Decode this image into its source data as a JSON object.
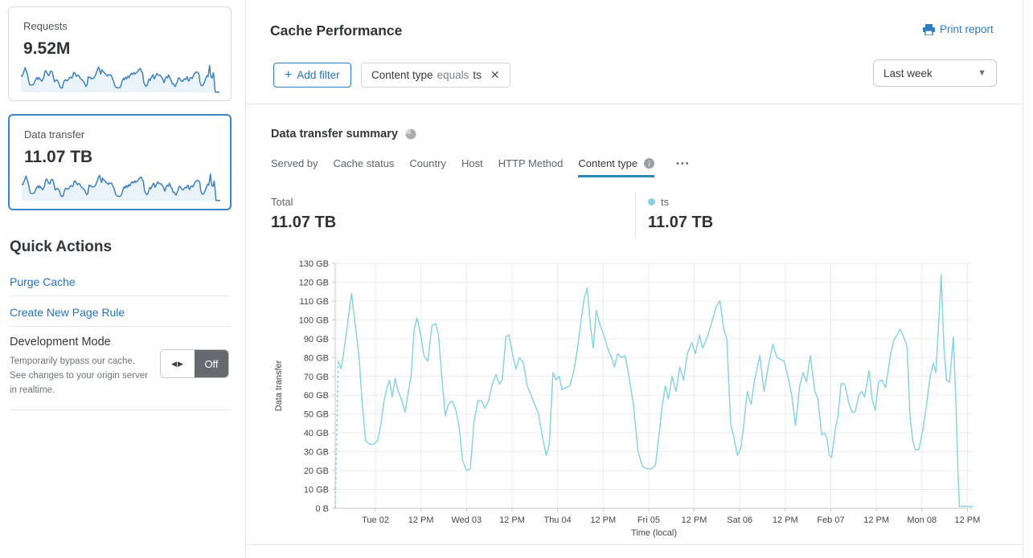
{
  "sidebar": {
    "cards": [
      {
        "label": "Requests",
        "value": "9.52M"
      },
      {
        "label": "Data transfer",
        "value": "11.07 TB"
      }
    ],
    "quick_actions_title": "Quick Actions",
    "links": {
      "purge": "Purge Cache",
      "page_rule": "Create New Page Rule"
    },
    "dev_mode": {
      "title": "Development Mode",
      "description": "Temporarily bypass our cache. See changes to your origin server in realtime.",
      "toggle_state": "Off"
    }
  },
  "header": {
    "title": "Cache Performance",
    "print_report": "Print report",
    "add_filter": "Add filter",
    "filter_chip": {
      "field": "Content type",
      "operator": "equals",
      "value": "ts"
    },
    "time_range": "Last week"
  },
  "summary": {
    "title": "Data transfer summary",
    "tabs": [
      {
        "label": "Served by"
      },
      {
        "label": "Cache status"
      },
      {
        "label": "Country"
      },
      {
        "label": "Host"
      },
      {
        "label": "HTTP Method"
      },
      {
        "label": "Content type",
        "active": true
      }
    ],
    "more_menu": "•••",
    "total_label": "Total",
    "total_value": "11.07 TB",
    "legend": [
      {
        "label": "ts",
        "value": "11.07 TB"
      }
    ]
  },
  "chart_data": {
    "type": "line",
    "title": "Data transfer summary",
    "xlabel": "Time (local)",
    "ylabel": "Data transfer",
    "x_unit": "hours_from_period_start",
    "x_range_hours": [
      0,
      168
    ],
    "ylim_gb": [
      0,
      130
    ],
    "grid": true,
    "y_ticks": [
      "0 B",
      "10 GB",
      "20 GB",
      "30 GB",
      "40 GB",
      "50 GB",
      "60 GB",
      "70 GB",
      "80 GB",
      "90 GB",
      "100 GB",
      "110 GB",
      "120 GB",
      "130 GB"
    ],
    "x_ticks": [
      {
        "hour": 10.6,
        "label": "Tue 02"
      },
      {
        "hour": 22.6,
        "label": "12 PM"
      },
      {
        "hour": 34.6,
        "label": "Wed 03"
      },
      {
        "hour": 46.6,
        "label": "12 PM"
      },
      {
        "hour": 58.6,
        "label": "Thu 04"
      },
      {
        "hour": 70.6,
        "label": "12 PM"
      },
      {
        "hour": 82.6,
        "label": "Fri 05"
      },
      {
        "hour": 94.6,
        "label": "12 PM"
      },
      {
        "hour": 106.6,
        "label": "Sat 06"
      },
      {
        "hour": 118.6,
        "label": "12 PM"
      },
      {
        "hour": 130.6,
        "label": "Feb 07"
      },
      {
        "hour": 142.6,
        "label": "12 PM"
      },
      {
        "hour": 154.6,
        "label": "Mon 08"
      },
      {
        "hour": 166.6,
        "label": "12 PM"
      }
    ],
    "leading_dashed_segment_hour_gb": [
      [
        0,
        0
      ],
      [
        0.8,
        78
      ]
    ],
    "series": [
      {
        "name": "ts",
        "color": "#8ad3e2",
        "total": "11.07 TB",
        "points_hour_gb": [
          [
            0.8,
            78
          ],
          [
            1.6,
            74
          ],
          [
            2.6,
            88
          ],
          [
            4.3,
            114
          ],
          [
            5.3,
            97
          ],
          [
            6.3,
            80
          ],
          [
            7.1,
            56
          ],
          [
            8,
            36
          ],
          [
            9,
            34
          ],
          [
            10.2,
            34
          ],
          [
            11.2,
            36
          ],
          [
            12,
            44
          ],
          [
            12.8,
            56
          ],
          [
            13.6,
            64
          ],
          [
            14.3,
            68
          ],
          [
            15,
            59
          ],
          [
            15.8,
            69
          ],
          [
            16.6,
            62
          ],
          [
            17.6,
            57
          ],
          [
            18.4,
            51
          ],
          [
            19.3,
            62
          ],
          [
            20,
            70
          ],
          [
            20.8,
            95
          ],
          [
            21.6,
            101
          ],
          [
            22.6,
            91
          ],
          [
            23.4,
            81
          ],
          [
            24.4,
            78
          ],
          [
            25.5,
            97
          ],
          [
            26.5,
            98
          ],
          [
            27.2,
            92
          ],
          [
            28.2,
            67
          ],
          [
            29,
            49
          ],
          [
            29.8,
            55
          ],
          [
            30.8,
            57
          ],
          [
            31.8,
            52
          ],
          [
            32.6,
            44
          ],
          [
            33.6,
            25
          ],
          [
            34.6,
            20
          ],
          [
            35.6,
            21
          ],
          [
            36.6,
            46
          ],
          [
            37.6,
            57
          ],
          [
            38.6,
            57
          ],
          [
            39.4,
            53
          ],
          [
            40.4,
            57
          ],
          [
            41.4,
            66
          ],
          [
            42.4,
            71
          ],
          [
            43.2,
            66
          ],
          [
            44,
            68
          ],
          [
            45,
            91
          ],
          [
            45.8,
            92
          ],
          [
            46.6,
            83
          ],
          [
            47.6,
            74
          ],
          [
            48.6,
            80
          ],
          [
            49.6,
            77
          ],
          [
            50.6,
            65
          ],
          [
            51.6,
            60
          ],
          [
            52.6,
            55
          ],
          [
            53.6,
            50
          ],
          [
            54.6,
            38
          ],
          [
            55.6,
            28
          ],
          [
            56.4,
            34
          ],
          [
            57.4,
            72
          ],
          [
            58.2,
            68
          ],
          [
            59,
            70
          ],
          [
            59.8,
            63
          ],
          [
            60.8,
            64
          ],
          [
            61.8,
            65
          ],
          [
            62.8,
            72
          ],
          [
            63.8,
            84
          ],
          [
            64.8,
            100
          ],
          [
            65.6,
            111
          ],
          [
            66.4,
            117
          ],
          [
            67.2,
            98
          ],
          [
            68,
            85
          ],
          [
            68.8,
            105
          ],
          [
            69.8,
            97
          ],
          [
            70.8,
            92
          ],
          [
            71.8,
            85
          ],
          [
            72.8,
            80
          ],
          [
            73.6,
            75
          ],
          [
            74.4,
            82
          ],
          [
            75.4,
            80
          ],
          [
            76.4,
            81
          ],
          [
            77.4,
            70
          ],
          [
            78.6,
            55
          ],
          [
            79.8,
            30
          ],
          [
            81,
            22
          ],
          [
            82.2,
            21
          ],
          [
            83.4,
            21
          ],
          [
            84.4,
            23
          ],
          [
            85.4,
            40
          ],
          [
            86.2,
            55
          ],
          [
            87,
            65
          ],
          [
            87.8,
            58
          ],
          [
            88.8,
            70
          ],
          [
            89.8,
            62
          ],
          [
            90.8,
            75
          ],
          [
            91.8,
            68
          ],
          [
            92.8,
            82
          ],
          [
            94,
            88
          ],
          [
            94.9,
            82
          ],
          [
            96,
            92
          ],
          [
            96.8,
            85
          ],
          [
            97.9,
            90
          ],
          [
            99,
            97
          ],
          [
            100.4,
            107
          ],
          [
            101.4,
            110
          ],
          [
            102.4,
            95
          ],
          [
            103.2,
            90
          ],
          [
            104.2,
            45
          ],
          [
            105,
            38
          ],
          [
            106,
            28
          ],
          [
            106.9,
            32
          ],
          [
            107.7,
            45
          ],
          [
            108.6,
            62
          ],
          [
            109.6,
            55
          ],
          [
            110.5,
            68
          ],
          [
            111.9,
            81
          ],
          [
            113,
            62
          ],
          [
            114,
            74
          ],
          [
            115.3,
            87
          ],
          [
            116.4,
            80
          ],
          [
            117.4,
            79
          ],
          [
            118.3,
            78
          ],
          [
            119.3,
            70
          ],
          [
            120.3,
            60
          ],
          [
            121.3,
            44
          ],
          [
            122.4,
            65
          ],
          [
            123.3,
            72
          ],
          [
            124.2,
            67
          ],
          [
            125.2,
            81
          ],
          [
            126.4,
            62
          ],
          [
            127.2,
            58
          ],
          [
            128.2,
            39
          ],
          [
            129,
            40
          ],
          [
            129.6,
            37
          ],
          [
            130.2,
            28
          ],
          [
            130.8,
            27
          ],
          [
            131.8,
            42
          ],
          [
            132.5,
            49
          ],
          [
            133.3,
            66
          ],
          [
            134.3,
            66
          ],
          [
            135.3,
            56
          ],
          [
            136.2,
            51
          ],
          [
            137,
            51
          ],
          [
            138,
            60
          ],
          [
            138.8,
            62
          ],
          [
            139.5,
            59
          ],
          [
            140.7,
            73
          ],
          [
            141.5,
            58
          ],
          [
            142.3,
            52
          ],
          [
            143.2,
            67
          ],
          [
            144.1,
            68
          ],
          [
            145,
            64
          ],
          [
            146.4,
            82
          ],
          [
            147.2,
            89
          ],
          [
            148.9,
            95
          ],
          [
            150,
            90
          ],
          [
            150.7,
            86
          ],
          [
            151.5,
            48
          ],
          [
            152.2,
            36
          ],
          [
            152.9,
            31
          ],
          [
            153.8,
            31
          ],
          [
            154.9,
            42
          ],
          [
            155.9,
            56
          ],
          [
            156.8,
            70
          ],
          [
            157.6,
            77
          ],
          [
            158.3,
            72
          ],
          [
            159,
            97
          ],
          [
            159.7,
            124
          ],
          [
            160.4,
            86
          ],
          [
            161.1,
            68
          ],
          [
            161.9,
            67
          ],
          [
            162.9,
            91
          ],
          [
            163.6,
            55
          ],
          [
            164.1,
            20
          ],
          [
            164.5,
            1
          ],
          [
            166,
            1
          ],
          [
            168,
            1
          ]
        ]
      }
    ],
    "sparkline_color": "#3f81bd",
    "sparkline_fill": "#eaf2fa"
  }
}
